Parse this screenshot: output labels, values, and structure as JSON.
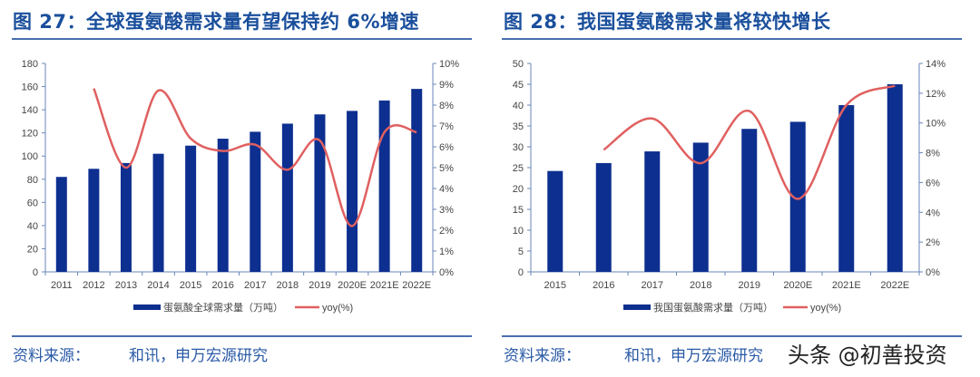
{
  "titles": [
    "图 27：全球蛋氨酸需求量有望保持约 6%增速",
    "图 28：我国蛋氨酸需求量将较快增长"
  ],
  "source": {
    "label": "资料来源：",
    "text": "和讯，申万宏源研究"
  },
  "watermark": "头条 @初善投资",
  "colors": {
    "bar": "#0d2f8f",
    "line": "#e06060",
    "axis": "#6a85b8",
    "title": "#1a4f9c"
  },
  "chart_data": [
    {
      "type": "bar+line",
      "categories": [
        "2011",
        "2012",
        "2013",
        "2014",
        "2015",
        "2016",
        "2017",
        "2018",
        "2019",
        "2020E",
        "2021E",
        "2022E"
      ],
      "series": [
        {
          "name": "蛋氨酸全球需求量（万吨）",
          "type": "bar",
          "axis": "left",
          "values": [
            82,
            89,
            94,
            102,
            109,
            115,
            121,
            128,
            136,
            139,
            148,
            158
          ]
        },
        {
          "name": "yoy(%)",
          "type": "line",
          "axis": "right",
          "values": [
            null,
            8.8,
            5.0,
            8.7,
            6.4,
            5.8,
            6.1,
            4.9,
            6.3,
            2.2,
            6.7,
            6.7
          ]
        }
      ],
      "ylim": [
        0,
        180
      ],
      "yticks": [
        0,
        20,
        40,
        60,
        80,
        100,
        120,
        140,
        160,
        180
      ],
      "y2lim": [
        0,
        10
      ],
      "y2ticks": [
        "0%",
        "1%",
        "2%",
        "3%",
        "4%",
        "5%",
        "6%",
        "7%",
        "8%",
        "9%",
        "10%"
      ],
      "legend": "bottom"
    },
    {
      "type": "bar+line",
      "categories": [
        "2015",
        "2016",
        "2017",
        "2018",
        "2019",
        "2020E",
        "2021E",
        "2022E"
      ],
      "series": [
        {
          "name": "我国蛋氨酸需求量（万吨）",
          "type": "bar",
          "axis": "left",
          "values": [
            24.2,
            26.1,
            28.9,
            31,
            34.3,
            36,
            40,
            45
          ]
        },
        {
          "name": "yoy(%)",
          "type": "line",
          "axis": "right",
          "values": [
            null,
            8.2,
            10.3,
            7.3,
            10.8,
            4.9,
            11.2,
            12.5
          ]
        }
      ],
      "ylim": [
        0,
        50
      ],
      "yticks": [
        0,
        5,
        10,
        15,
        20,
        25,
        30,
        35,
        40,
        45,
        50
      ],
      "y2lim": [
        0,
        14
      ],
      "y2ticks": [
        "0%",
        "2%",
        "4%",
        "6%",
        "8%",
        "10%",
        "12%",
        "14%"
      ],
      "legend": "bottom"
    }
  ]
}
